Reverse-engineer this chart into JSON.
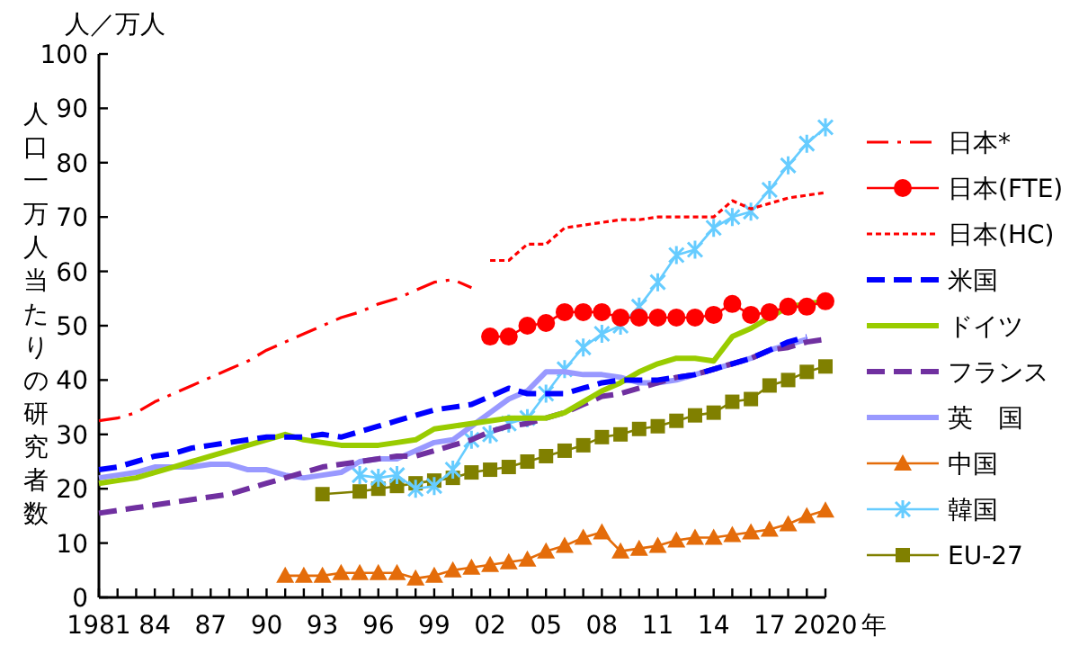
{
  "chart_data": {
    "type": "line",
    "ylabel": "人口一万人当たりの研究者数",
    "xlabel": "年",
    "annotations": [
      "人／万人"
    ],
    "xlim": [
      1981,
      2020
    ],
    "ylim": [
      0,
      100
    ],
    "yticks": [
      0,
      10,
      20,
      30,
      40,
      50,
      60,
      70,
      80,
      90,
      100
    ],
    "xticks": [
      {
        "value": 1981,
        "label": "1981"
      },
      {
        "value": 1982,
        "label": null
      },
      {
        "value": 1983,
        "label": null
      },
      {
        "value": 1984,
        "label": "84"
      },
      {
        "value": 1985,
        "label": null
      },
      {
        "value": 1986,
        "label": null
      },
      {
        "value": 1987,
        "label": "87"
      },
      {
        "value": 1988,
        "label": null
      },
      {
        "value": 1989,
        "label": null
      },
      {
        "value": 1990,
        "label": "90"
      },
      {
        "value": 1991,
        "label": null
      },
      {
        "value": 1992,
        "label": null
      },
      {
        "value": 1993,
        "label": "93"
      },
      {
        "value": 1994,
        "label": null
      },
      {
        "value": 1995,
        "label": null
      },
      {
        "value": 1996,
        "label": "96"
      },
      {
        "value": 1997,
        "label": null
      },
      {
        "value": 1998,
        "label": null
      },
      {
        "value": 1999,
        "label": "99"
      },
      {
        "value": 2000,
        "label": null
      },
      {
        "value": 2001,
        "label": null
      },
      {
        "value": 2002,
        "label": "02"
      },
      {
        "value": 2003,
        "label": null
      },
      {
        "value": 2004,
        "label": null
      },
      {
        "value": 2005,
        "label": "05"
      },
      {
        "value": 2006,
        "label": null
      },
      {
        "value": 2007,
        "label": null
      },
      {
        "value": 2008,
        "label": "08"
      },
      {
        "value": 2009,
        "label": null
      },
      {
        "value": 2010,
        "label": null
      },
      {
        "value": 2011,
        "label": "11"
      },
      {
        "value": 2012,
        "label": null
      },
      {
        "value": 2013,
        "label": null
      },
      {
        "value": 2014,
        "label": "14"
      },
      {
        "value": 2015,
        "label": null
      },
      {
        "value": 2016,
        "label": null
      },
      {
        "value": 2017,
        "label": "17"
      },
      {
        "value": 2018,
        "label": null
      },
      {
        "value": 2019,
        "label": null
      },
      {
        "value": 2020,
        "label": "2020"
      }
    ],
    "grid": false,
    "legend": "right",
    "series": [
      {
        "name": "日本*",
        "color": "#ff0000",
        "line_style": "dashdot",
        "marker": "none",
        "x": [
          1981,
          1982,
          1983,
          1984,
          1985,
          1986,
          1987,
          1988,
          1989,
          1990,
          1991,
          1992,
          1993,
          1994,
          1995,
          1996,
          1997,
          1998,
          1999,
          2000,
          2001
        ],
        "values": [
          32.5,
          33,
          34,
          36,
          37.5,
          39,
          40.5,
          42,
          43.5,
          45.5,
          47,
          48.5,
          50,
          51.5,
          52.5,
          54,
          55,
          56.5,
          58,
          58.5,
          57
        ]
      },
      {
        "name": "日本(FTE)",
        "color": "#ff0000",
        "line_style": "solid",
        "marker": "circle",
        "x": [
          2002,
          2003,
          2004,
          2005,
          2006,
          2007,
          2008,
          2009,
          2010,
          2011,
          2012,
          2013,
          2014,
          2015,
          2016,
          2017,
          2018,
          2019,
          2020
        ],
        "values": [
          48,
          48,
          50,
          50.5,
          52.5,
          52.5,
          52.5,
          51.5,
          51.5,
          51.5,
          51.5,
          51.5,
          52,
          54,
          52,
          52.5,
          53.5,
          53.5,
          54.5
        ]
      },
      {
        "name": "日本(HC)",
        "color": "#ff0000",
        "line_style": "dotted",
        "marker": "none",
        "x": [
          2002,
          2003,
          2004,
          2005,
          2006,
          2007,
          2008,
          2009,
          2010,
          2011,
          2012,
          2013,
          2014,
          2015,
          2016,
          2017,
          2018,
          2019,
          2020
        ],
        "values": [
          62,
          62,
          65,
          65,
          68,
          68.5,
          69,
          69.5,
          69.5,
          70,
          70,
          70,
          70,
          73,
          71.5,
          72.5,
          73.5,
          74,
          74.5
        ]
      },
      {
        "name": "米国",
        "color": "#0000ff",
        "line_style": "dashed",
        "marker": "none",
        "x": [
          1981,
          1982,
          1983,
          1984,
          1985,
          1986,
          1987,
          1988,
          1989,
          1990,
          1991,
          1992,
          1993,
          1994,
          1995,
          1996,
          1997,
          1998,
          1999,
          2000,
          2001,
          2002,
          2003,
          2004,
          2005,
          2006,
          2007,
          2008,
          2009,
          2010,
          2011,
          2012,
          2013,
          2014,
          2015,
          2016,
          2017,
          2018,
          2019
        ],
        "values": [
          23.5,
          24,
          25,
          26,
          26.5,
          27.5,
          28,
          28.5,
          29,
          29.5,
          29.5,
          29.5,
          30,
          29.5,
          30.5,
          31.5,
          32.5,
          33.5,
          34.5,
          35,
          35.5,
          37,
          38.5,
          37.5,
          37.5,
          37.5,
          38.5,
          39.5,
          40,
          40,
          40,
          40.5,
          41,
          42,
          43,
          44,
          45.5,
          47,
          48
        ]
      },
      {
        "name": "ドイツ",
        "color": "#99cc00",
        "line_style": "solid",
        "marker": "none",
        "x": [
          1981,
          1982,
          1983,
          1984,
          1985,
          1986,
          1987,
          1988,
          1989,
          1990,
          1991,
          1992,
          1993,
          1994,
          1995,
          1996,
          1997,
          1998,
          1999,
          2000,
          2001,
          2002,
          2003,
          2004,
          2005,
          2006,
          2007,
          2008,
          2009,
          2010,
          2011,
          2012,
          2013,
          2014,
          2015,
          2016,
          2017,
          2018,
          2019,
          2020
        ],
        "values": [
          21,
          21.5,
          22,
          23,
          24,
          25,
          26,
          27,
          28,
          29,
          30,
          29,
          28.5,
          28,
          28,
          28,
          28.5,
          29,
          31,
          31.5,
          32,
          32.5,
          33,
          33,
          33,
          34,
          36,
          38,
          39.5,
          41.5,
          43,
          44,
          44,
          43.5,
          48,
          49.5,
          51.5,
          53.5,
          54,
          54.5
        ]
      },
      {
        "name": "フランス",
        "color": "#7030a0",
        "line_style": "dashed",
        "marker": "none",
        "x": [
          1981,
          1982,
          1983,
          1984,
          1985,
          1986,
          1987,
          1988,
          1989,
          1990,
          1991,
          1992,
          1993,
          1994,
          1995,
          1996,
          1997,
          1998,
          1999,
          2000,
          2001,
          2002,
          2003,
          2004,
          2005,
          2006,
          2007,
          2008,
          2009,
          2010,
          2011,
          2012,
          2013,
          2014,
          2015,
          2016,
          2017,
          2018,
          2019,
          2020
        ],
        "values": [
          15.5,
          16,
          16.5,
          17,
          17.5,
          18,
          18.5,
          19,
          20,
          21,
          22,
          23,
          24,
          24.5,
          25,
          25.5,
          26,
          26,
          27,
          28,
          29,
          30.5,
          31.5,
          32,
          33,
          34,
          35.5,
          37,
          37.5,
          38.5,
          39.5,
          40.5,
          41,
          42,
          43,
          44,
          45.5,
          46,
          47,
          47.5
        ]
      },
      {
        "name": "英　国",
        "color": "#9999ff",
        "line_style": "solid",
        "marker": "none",
        "x": [
          1981,
          1982,
          1983,
          1984,
          1985,
          1986,
          1987,
          1988,
          1989,
          1990,
          1991,
          1992,
          1993,
          1994,
          1995,
          1996,
          1997,
          1998,
          1999,
          2000,
          2001,
          2002,
          2003,
          2004,
          2005,
          2006,
          2007,
          2008,
          2009,
          2010,
          2011,
          2012,
          2013,
          2014,
          2015,
          2016,
          2017,
          2018,
          2019
        ],
        "values": [
          22,
          22.5,
          23,
          24,
          24,
          24,
          24.5,
          24.5,
          23.5,
          23.5,
          22.5,
          22,
          22.5,
          23,
          25,
          25.5,
          25.5,
          27,
          28.5,
          29,
          31.5,
          34,
          36.5,
          38,
          41.5,
          41.5,
          41,
          41,
          40.5,
          39.5,
          39.5,
          40,
          41,
          42,
          43,
          44,
          45.5,
          46.5,
          47.5
        ]
      },
      {
        "name": "中国",
        "color": "#e46c0a",
        "line_style": "solid",
        "marker": "triangle",
        "x": [
          1991,
          1992,
          1993,
          1994,
          1995,
          1996,
          1997,
          1998,
          1999,
          2000,
          2001,
          2002,
          2003,
          2004,
          2005,
          2006,
          2007,
          2008,
          2009,
          2010,
          2011,
          2012,
          2013,
          2014,
          2015,
          2016,
          2017,
          2018,
          2019,
          2020
        ],
        "values": [
          4,
          4,
          4,
          4.5,
          4.5,
          4.5,
          4.5,
          3.5,
          4,
          5,
          5.5,
          6,
          6.5,
          7,
          8.5,
          9.5,
          11,
          12,
          8.5,
          9,
          9.5,
          10.5,
          11,
          11,
          11.5,
          12,
          12.5,
          13.5,
          15,
          16
        ]
      },
      {
        "name": "韓国",
        "color": "#66ccff",
        "line_style": "solid",
        "marker": "cross",
        "x": [
          1995,
          1996,
          1997,
          1998,
          1999,
          2000,
          2001,
          2002,
          2003,
          2004,
          2005,
          2006,
          2007,
          2008,
          2009,
          2010,
          2011,
          2012,
          2013,
          2014,
          2015,
          2016,
          2017,
          2018,
          2019,
          2020
        ],
        "values": [
          22.5,
          22,
          22.5,
          20,
          20.5,
          23.5,
          29,
          30,
          32,
          33,
          37.5,
          42,
          46,
          48.5,
          50,
          53.5,
          58,
          63,
          64,
          68,
          70,
          71,
          75,
          79.5,
          83.5,
          86.5
        ]
      },
      {
        "name": "EU-27",
        "color": "#808000",
        "line_style": "solid",
        "marker": "square",
        "x": [
          1993,
          1995,
          1996,
          1997,
          1998,
          1999,
          2000,
          2001,
          2002,
          2003,
          2004,
          2005,
          2006,
          2007,
          2008,
          2009,
          2010,
          2011,
          2012,
          2013,
          2014,
          2015,
          2016,
          2017,
          2018,
          2019,
          2020
        ],
        "values": [
          19,
          19.5,
          20,
          20.5,
          21,
          21.5,
          22,
          23,
          23.5,
          24,
          25,
          26,
          27,
          28,
          29.5,
          30,
          31,
          31.5,
          32.5,
          33.5,
          34,
          36,
          36.5,
          39,
          40,
          41.5,
          42.5
        ]
      }
    ]
  }
}
